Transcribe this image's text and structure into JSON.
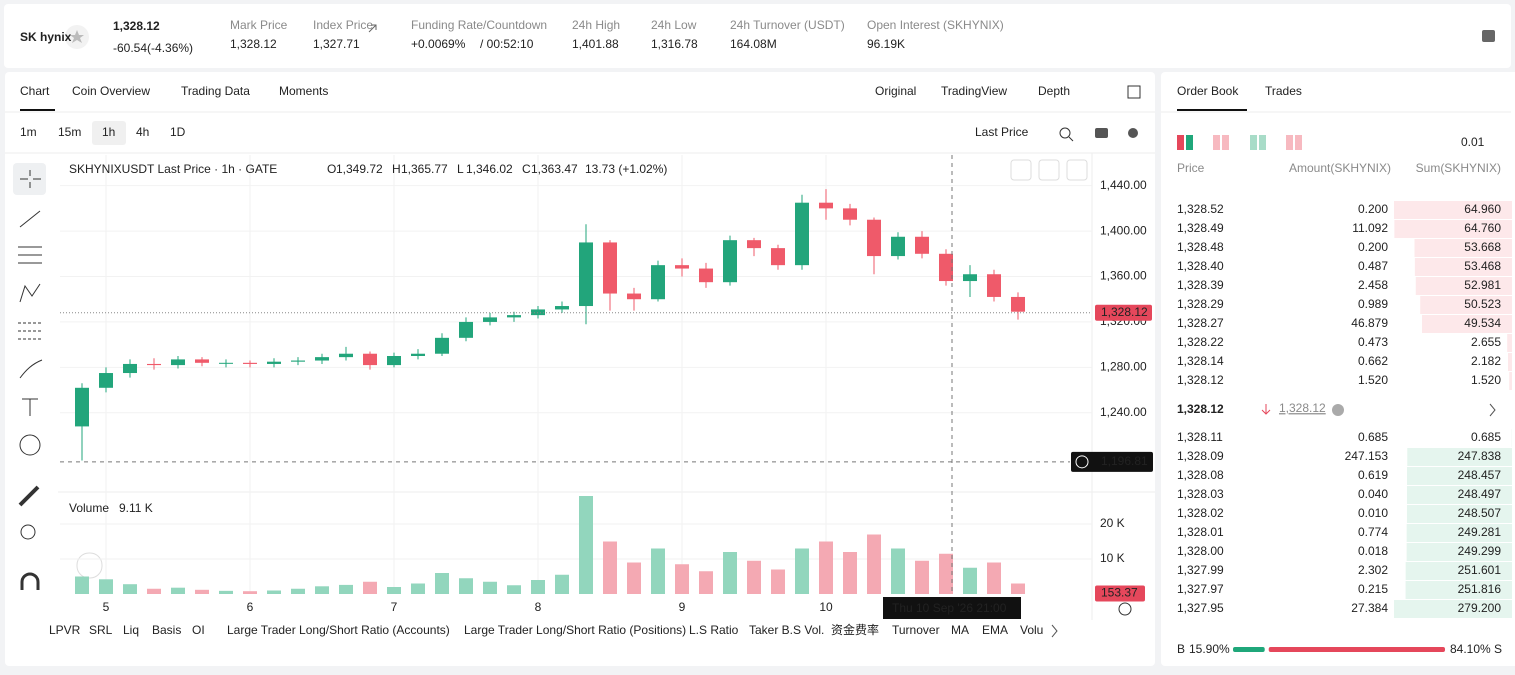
{
  "header": {
    "logo": "SK hynix",
    "price": "1,328.12",
    "change": "-60.54(-4.36%)",
    "stats": [
      {
        "label": "Mark Price",
        "value": "1,328.12"
      },
      {
        "label": "Index Price",
        "value": "1,327.71"
      },
      {
        "label": "Funding Rate/Countdown",
        "value": "+0.0069%",
        "value2": "/ 00:52:10"
      },
      {
        "label": "24h High",
        "value": "1,401.88"
      },
      {
        "label": "24h Low",
        "value": "1,316.78"
      },
      {
        "label": "24h Turnover (USDT)",
        "value": "164.08M"
      },
      {
        "label": "Open Interest (SKHYNIX)",
        "value": "96.19K"
      }
    ]
  },
  "tabs": [
    "Chart",
    "Coin Overview",
    "Trading Data",
    "Moments"
  ],
  "views": [
    "Original",
    "TradingView",
    "Depth"
  ],
  "intervals": [
    "1m",
    "15m",
    "1h",
    "4h",
    "1D"
  ],
  "price_source": "Last Price",
  "chart_data": {
    "type": "candlestick",
    "legend": {
      "title": "SKHYNIXUSDT Last Price · 1h · GATE",
      "ohlc": [
        {
          "key": "O",
          "value": "1,349.72"
        },
        {
          "key": "H",
          "value": "1,365.77"
        },
        {
          "key": "L",
          "value": "1,346.02"
        },
        {
          "key": "C",
          "value": "1,363.47"
        }
      ],
      "change": "13.73 (+1.02%)"
    },
    "up_color": "#22a57b",
    "down_color": "#ef5a6a",
    "up_volume_color": "#92d6bd",
    "down_volume_color": "#f4a9b3",
    "categories": [
      null,
      "5",
      null,
      null,
      null,
      null,
      null,
      "6",
      null,
      null,
      null,
      null,
      null,
      "7",
      null,
      null,
      null,
      null,
      null,
      "8",
      null,
      null,
      null,
      null,
      null,
      "9",
      null,
      null,
      null,
      null,
      null,
      "10",
      null,
      null,
      null,
      null,
      null,
      null,
      null,
      null
    ],
    "open": [
      1228,
      1262,
      1275,
      1283,
      1282,
      1287,
      1284,
      1284,
      1283,
      1285,
      1286,
      1289,
      1292,
      1282,
      1290,
      1292,
      1306,
      1320,
      1324,
      1326,
      1331,
      1334,
      1390,
      1345,
      1340,
      1370,
      1367,
      1355,
      1392,
      1385,
      1370,
      1425,
      1420,
      1410,
      1378,
      1395,
      1380,
      1356,
      1362,
      1342
    ],
    "high": [
      1266,
      1280,
      1287,
      1288,
      1290,
      1289,
      1287,
      1286,
      1288,
      1289,
      1292,
      1298,
      1294,
      1293,
      1296,
      1310,
      1324,
      1328,
      1329,
      1334,
      1338,
      1406,
      1392,
      1350,
      1374,
      1376,
      1372,
      1396,
      1394,
      1388,
      1432,
      1437,
      1424,
      1412,
      1399,
      1400,
      1384,
      1370,
      1366,
      1346
    ],
    "low": [
      1198,
      1258,
      1271,
      1278,
      1279,
      1281,
      1280,
      1280,
      1280,
      1282,
      1283,
      1286,
      1278,
      1280,
      1287,
      1290,
      1303,
      1317,
      1320,
      1323,
      1328,
      1318,
      1330,
      1330,
      1338,
      1360,
      1350,
      1352,
      1378,
      1366,
      1366,
      1410,
      1405,
      1362,
      1375,
      1376,
      1352,
      1342,
      1338,
      1322
    ],
    "close": [
      1262,
      1275,
      1283,
      1282,
      1287,
      1284,
      1284,
      1283,
      1285,
      1286,
      1289,
      1292,
      1282,
      1290,
      1292,
      1306,
      1320,
      1324,
      1326,
      1331,
      1334,
      1390,
      1345,
      1340,
      1370,
      1367,
      1355,
      1392,
      1385,
      1370,
      1425,
      1420,
      1410,
      1378,
      1395,
      1380,
      1356,
      1362,
      1342,
      1329
    ],
    "volume": [
      5000,
      4200,
      2800,
      1500,
      1800,
      1200,
      900,
      800,
      1000,
      1500,
      2200,
      2600,
      3500,
      2000,
      3000,
      6000,
      4500,
      3500,
      2500,
      4000,
      5500,
      28000,
      15000,
      9000,
      13000,
      8500,
      6500,
      12000,
      9500,
      7000,
      13000,
      15000,
      12000,
      17000,
      13000,
      9500,
      11500,
      7500,
      9000,
      3000
    ],
    "ylim": [
      1172,
      1467
    ],
    "yticks": [
      {
        "value": 1240,
        "label": "1,240.00"
      },
      {
        "value": 1280,
        "label": "1,280.00"
      },
      {
        "value": 1320,
        "label": "1,320.00"
      },
      {
        "value": 1360,
        "label": "1,360.00"
      },
      {
        "value": 1400,
        "label": "1,400.00"
      },
      {
        "value": 1440,
        "label": "1,440.00"
      }
    ],
    "volume_ylim": [
      0,
      28000
    ],
    "volume_yticks": [
      {
        "value": 10000,
        "label": "10 K"
      },
      {
        "value": 20000,
        "label": "20 K"
      }
    ],
    "last_price": {
      "value": 1328.12,
      "label": "1,328.12"
    },
    "crosshair_price": {
      "value": 1196.81,
      "label": "1,196.81"
    },
    "crosshair_time": "Thu 10 Sep '26  21:00",
    "volume_label": "Volume",
    "volume_value": "9.11 K",
    "volume_tag": {
      "value": 153.37,
      "label": "153.37"
    }
  },
  "indicators": [
    "LPVR",
    "SRL",
    "Liq",
    "Basis",
    "OI",
    "Large Trader Long/Short Ratio (Accounts)",
    "Large Trader Long/Short Ratio (Positions)",
    "L.S Ratio",
    "Taker B.S Vol.",
    "资金费率",
    "Turnover",
    "MA",
    "EMA",
    "Volu"
  ],
  "order_book": {
    "tabs": [
      "Order Book",
      "Trades"
    ],
    "precision": "0.01",
    "columns": [
      "Price",
      "Amount(SKHYNIX)",
      "Sum(SKHYNIX)"
    ],
    "asks": [
      [
        "1,328.52",
        "0.200",
        {
          "value": 64.96,
          "label": "64.960"
        }
      ],
      [
        "1,328.49",
        "11.092",
        {
          "value": 64.76,
          "label": "64.760"
        }
      ],
      [
        "1,328.48",
        "0.200",
        {
          "value": 53.668,
          "label": "53.668"
        }
      ],
      [
        "1,328.40",
        "0.487",
        {
          "value": 53.468,
          "label": "53.468"
        }
      ],
      [
        "1,328.39",
        "2.458",
        {
          "value": 52.981,
          "label": "52.981"
        }
      ],
      [
        "1,328.29",
        "0.989",
        {
          "value": 50.523,
          "label": "50.523"
        }
      ],
      [
        "1,328.27",
        "46.879",
        {
          "value": 49.534,
          "label": "49.534"
        }
      ],
      [
        "1,328.22",
        "0.473",
        {
          "value": 2.655,
          "label": "2.655"
        }
      ],
      [
        "1,328.14",
        "0.662",
        {
          "value": 2.182,
          "label": "2.182"
        }
      ],
      [
        "1,328.12",
        "1.520",
        {
          "value": 1.52,
          "label": "1.520"
        }
      ]
    ],
    "mid_price": "1,328.12",
    "mark_price": "1,328.12",
    "bids": [
      [
        "1,328.11",
        "0.685",
        {
          "value": 0.685,
          "label": "0.685"
        }
      ],
      [
        "1,328.09",
        "247.153",
        {
          "value": 247.838,
          "label": "247.838"
        }
      ],
      [
        "1,328.08",
        "0.619",
        {
          "value": 248.457,
          "label": "248.457"
        }
      ],
      [
        "1,328.03",
        "0.040",
        {
          "value": 248.497,
          "label": "248.497"
        }
      ],
      [
        "1,328.02",
        "0.010",
        {
          "value": 248.507,
          "label": "248.507"
        }
      ],
      [
        "1,328.01",
        "0.774",
        {
          "value": 249.281,
          "label": "249.281"
        }
      ],
      [
        "1,328.00",
        "0.018",
        {
          "value": 249.299,
          "label": "249.299"
        }
      ],
      [
        "1,327.99",
        "2.302",
        {
          "value": 251.601,
          "label": "251.601"
        }
      ],
      [
        "1,327.97",
        "0.215",
        {
          "value": 251.816,
          "label": "251.816"
        }
      ],
      [
        "1,327.95",
        "27.384",
        {
          "value": 279.2,
          "label": "279.200"
        }
      ]
    ],
    "buy_key": "B",
    "sell_key": "S",
    "buy": {
      "value": 15.9,
      "label": "15.90%"
    },
    "sell": {
      "value": 84.1,
      "label": "84.10%"
    }
  }
}
